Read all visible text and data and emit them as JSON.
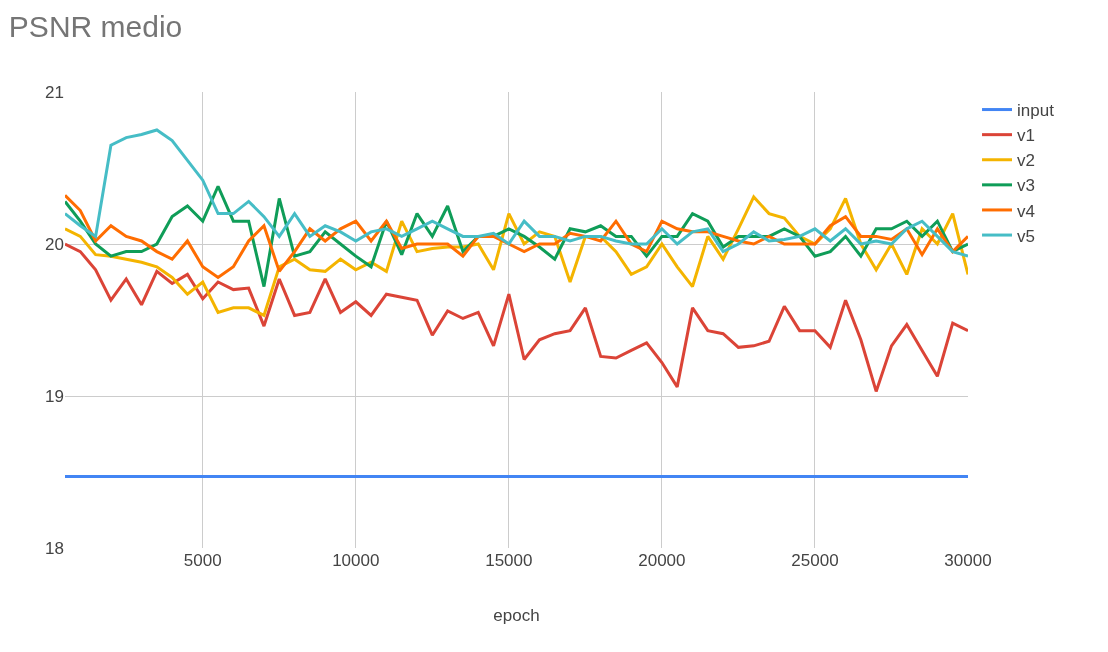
{
  "chart_data": {
    "type": "line",
    "title": "PSNR medio",
    "xlabel": "epoch",
    "x": [
      500,
      1000,
      1500,
      2000,
      2500,
      3000,
      3500,
      4000,
      4500,
      5000,
      5500,
      6000,
      6500,
      7000,
      7500,
      8000,
      8500,
      9000,
      9500,
      10000,
      10500,
      11000,
      11500,
      12000,
      12500,
      13000,
      13500,
      14000,
      14500,
      15000,
      15500,
      16000,
      16500,
      17000,
      17500,
      18000,
      18500,
      19000,
      19500,
      20000,
      20500,
      21000,
      21500,
      22000,
      22500,
      23000,
      23500,
      24000,
      24500,
      25000,
      25500,
      26000,
      26500,
      27000,
      27500,
      28000,
      28500,
      29000,
      29500,
      30000
    ],
    "xlim": [
      500,
      30000
    ],
    "xticks": [
      5000,
      10000,
      15000,
      20000,
      25000,
      30000
    ],
    "ylim": [
      18,
      21
    ],
    "yticks": [
      18,
      19,
      20,
      21
    ],
    "grid": true,
    "legend": "top right",
    "marker": "none",
    "line_style": "solid",
    "series": [
      {
        "name": "input",
        "color": "#4285f4",
        "values": [
          18.47,
          18.47,
          18.47,
          18.47,
          18.47,
          18.47,
          18.47,
          18.47,
          18.47,
          18.47,
          18.47,
          18.47,
          18.47,
          18.47,
          18.47,
          18.47,
          18.47,
          18.47,
          18.47,
          18.47,
          18.47,
          18.47,
          18.47,
          18.47,
          18.47,
          18.47,
          18.47,
          18.47,
          18.47,
          18.47,
          18.47,
          18.47,
          18.47,
          18.47,
          18.47,
          18.47,
          18.47,
          18.47,
          18.47,
          18.47,
          18.47,
          18.47,
          18.47,
          18.47,
          18.47,
          18.47,
          18.47,
          18.47,
          18.47,
          18.47,
          18.47,
          18.47,
          18.47,
          18.47,
          18.47,
          18.47,
          18.47,
          18.47,
          18.47,
          18.47
        ]
      },
      {
        "name": "v1",
        "color": "#db4437",
        "values": [
          20.0,
          19.95,
          19.83,
          19.63,
          19.77,
          19.6,
          19.82,
          19.74,
          19.8,
          19.64,
          19.75,
          19.7,
          19.71,
          19.46,
          19.77,
          19.53,
          19.55,
          19.77,
          19.55,
          19.62,
          19.53,
          19.67,
          19.65,
          19.63,
          19.4,
          19.56,
          19.51,
          19.55,
          19.33,
          19.67,
          19.24,
          19.37,
          19.41,
          19.43,
          19.58,
          19.26,
          19.25,
          19.3,
          19.35,
          19.22,
          19.06,
          19.58,
          19.43,
          19.41,
          19.32,
          19.33,
          19.36,
          19.59,
          19.43,
          19.43,
          19.32,
          19.63,
          19.37,
          19.03,
          19.33,
          19.47,
          19.3,
          19.13,
          19.48,
          19.43
        ]
      },
      {
        "name": "v2",
        "color": "#f4b400",
        "values": [
          20.1,
          20.05,
          19.93,
          19.92,
          19.9,
          19.88,
          19.85,
          19.78,
          19.67,
          19.75,
          19.55,
          19.58,
          19.58,
          19.53,
          19.85,
          19.9,
          19.83,
          19.82,
          19.9,
          19.83,
          19.88,
          19.82,
          20.15,
          19.95,
          19.97,
          19.98,
          19.98,
          20.0,
          19.83,
          20.2,
          20.0,
          20.08,
          20.05,
          19.75,
          20.05,
          20.05,
          19.95,
          19.8,
          19.85,
          20.0,
          19.85,
          19.72,
          20.05,
          19.9,
          20.1,
          20.31,
          20.2,
          20.17,
          20.05,
          20.0,
          20.1,
          20.3,
          20.0,
          19.83,
          20.0,
          19.8,
          20.1,
          20.0,
          20.2,
          19.8
        ]
      },
      {
        "name": "v3",
        "color": "#0f9d58",
        "values": [
          20.28,
          20.15,
          20.0,
          19.92,
          19.95,
          19.95,
          20.0,
          20.18,
          20.25,
          20.15,
          20.38,
          20.15,
          20.15,
          19.72,
          20.3,
          19.92,
          19.95,
          20.08,
          20.0,
          19.92,
          19.85,
          20.15,
          19.93,
          20.2,
          20.05,
          20.25,
          19.95,
          20.05,
          20.05,
          20.1,
          20.05,
          19.98,
          19.9,
          20.1,
          20.08,
          20.12,
          20.05,
          20.05,
          19.92,
          20.05,
          20.05,
          20.2,
          20.15,
          19.98,
          20.05,
          20.05,
          20.05,
          20.1,
          20.05,
          19.92,
          19.95,
          20.05,
          19.92,
          20.1,
          20.1,
          20.15,
          20.05,
          20.15,
          19.95,
          20.0
        ]
      },
      {
        "name": "v4",
        "color": "#ff6d01",
        "values": [
          20.32,
          20.22,
          20.02,
          20.12,
          20.05,
          20.02,
          19.95,
          19.9,
          20.02,
          19.85,
          19.78,
          19.85,
          20.02,
          20.12,
          19.82,
          19.95,
          20.1,
          20.02,
          20.1,
          20.15,
          20.02,
          20.15,
          19.97,
          20.0,
          20.0,
          20.0,
          19.92,
          20.05,
          20.05,
          20.0,
          19.95,
          20.0,
          20.0,
          20.07,
          20.05,
          20.02,
          20.15,
          20.0,
          19.95,
          20.15,
          20.1,
          20.08,
          20.08,
          20.05,
          20.02,
          20.0,
          20.05,
          20.0,
          20.0,
          20.0,
          20.12,
          20.18,
          20.05,
          20.05,
          20.03,
          20.1,
          19.93,
          20.1,
          19.95,
          20.05
        ]
      },
      {
        "name": "v5",
        "color": "#46bdc6",
        "values": [
          20.2,
          20.12,
          20.05,
          20.65,
          20.7,
          20.72,
          20.75,
          20.68,
          20.55,
          20.42,
          20.2,
          20.2,
          20.28,
          20.18,
          20.05,
          20.2,
          20.05,
          20.12,
          20.08,
          20.02,
          20.08,
          20.1,
          20.05,
          20.1,
          20.15,
          20.1,
          20.05,
          20.05,
          20.07,
          20.0,
          20.15,
          20.05,
          20.05,
          20.02,
          20.05,
          20.05,
          20.02,
          20.0,
          20.0,
          20.1,
          20.0,
          20.08,
          20.1,
          19.95,
          20.0,
          20.08,
          20.02,
          20.03,
          20.05,
          20.1,
          20.02,
          20.1,
          20.0,
          20.02,
          20.0,
          20.1,
          20.15,
          20.05,
          19.95,
          19.92
        ]
      }
    ]
  }
}
